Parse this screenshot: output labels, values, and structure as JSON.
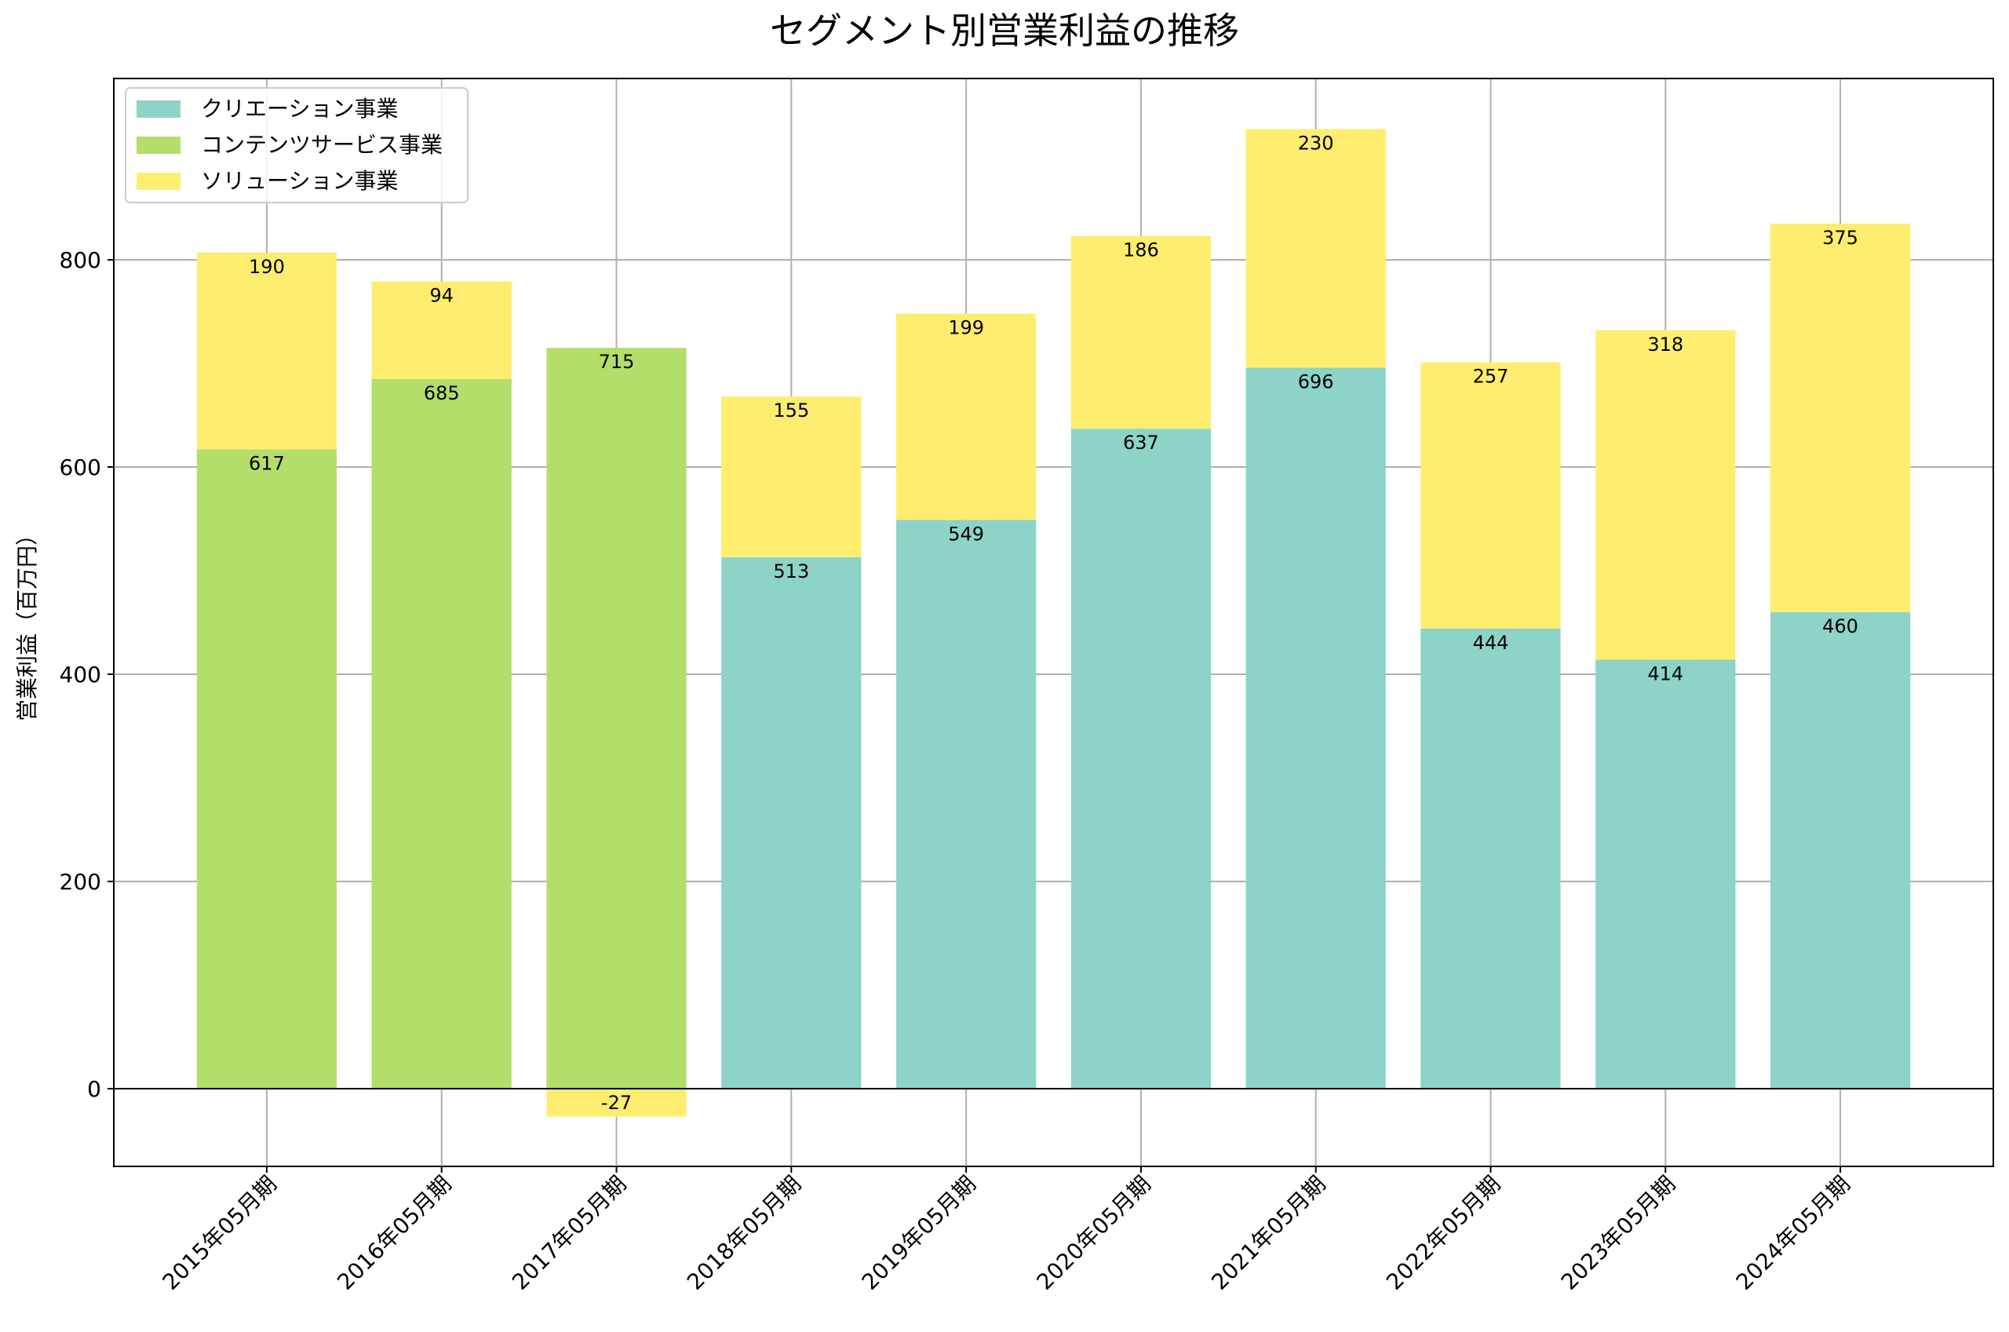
{
  "chart_data": {
    "type": "bar",
    "stacked": true,
    "title": "セグメント別営業利益の推移",
    "xlabel": "",
    "ylabel": "営業利益（百万円）",
    "ylim": [
      -75,
      975
    ],
    "yticks": [
      0,
      200,
      400,
      600,
      800
    ],
    "grid": true,
    "legend_position": "upper-left",
    "categories": [
      "2015年05月期",
      "2016年05月期",
      "2017年05月期",
      "2018年05月期",
      "2019年05月期",
      "2020年05月期",
      "2021年05月期",
      "2022年05月期",
      "2023年05月期",
      "2024年05月期"
    ],
    "series": [
      {
        "name": "クリエーション事業",
        "color": "#8dd3c7",
        "values": [
          null,
          null,
          null,
          513,
          549,
          637,
          696,
          444,
          414,
          460
        ]
      },
      {
        "name": "コンテンツサービス事業",
        "color": "#b3de69",
        "values": [
          617,
          685,
          715,
          null,
          null,
          null,
          null,
          null,
          null,
          null
        ]
      },
      {
        "name": "ソリューション事業",
        "color": "#ffed6f",
        "values": [
          190,
          94,
          -27,
          155,
          199,
          186,
          230,
          257,
          318,
          375
        ]
      }
    ]
  }
}
